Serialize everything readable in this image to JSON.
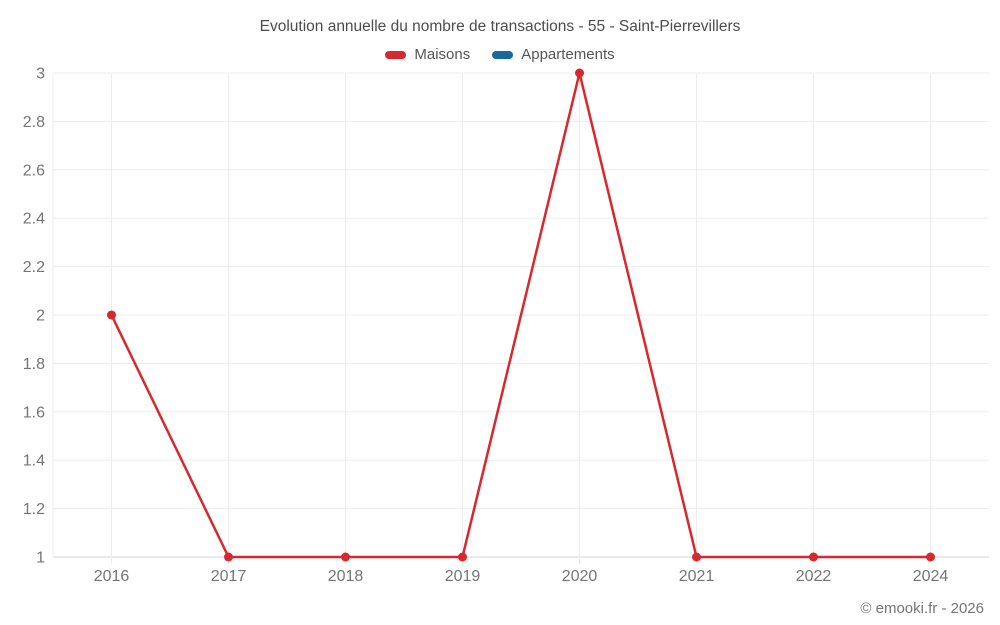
{
  "header": {
    "title": "Evolution annuelle du nombre de transactions - 55 - Saint-Pierrevillers"
  },
  "footer": {
    "copyright": "© emooki.fr - 2026"
  },
  "colors": {
    "maisons": "#d7282f",
    "appartements": "#17699b",
    "grid": "#ededed",
    "axis": "#d6d6d6",
    "tick_text": "#757575",
    "title_text": "#4c4c4c"
  },
  "chart_data": {
    "type": "line",
    "title": "Evolution annuelle du nombre de transactions - 55 - Saint-Pierrevillers",
    "categories": [
      "2016",
      "2017",
      "2018",
      "2019",
      "2020",
      "2021",
      "2022",
      "2024"
    ],
    "series": [
      {
        "name": "Maisons",
        "color": "#d7282f",
        "values": [
          2,
          1,
          1,
          1,
          3,
          1,
          1,
          1
        ]
      },
      {
        "name": "Appartements",
        "color": "#17699b",
        "values": []
      }
    ],
    "xlabel": "",
    "ylabel": "",
    "ylim": [
      1,
      3
    ],
    "yticks": [
      1,
      1.2,
      1.4,
      1.6,
      1.8,
      2,
      2.2,
      2.4,
      2.6,
      2.8,
      3
    ],
    "ytick_labels": [
      "1",
      "1.2",
      "1.4",
      "1.6",
      "1.8",
      "2",
      "2.2",
      "2.4",
      "2.6",
      "2.8",
      "3"
    ],
    "grid": true,
    "legend_position": "top",
    "annotations": [
      "© emooki.fr - 2026"
    ]
  }
}
